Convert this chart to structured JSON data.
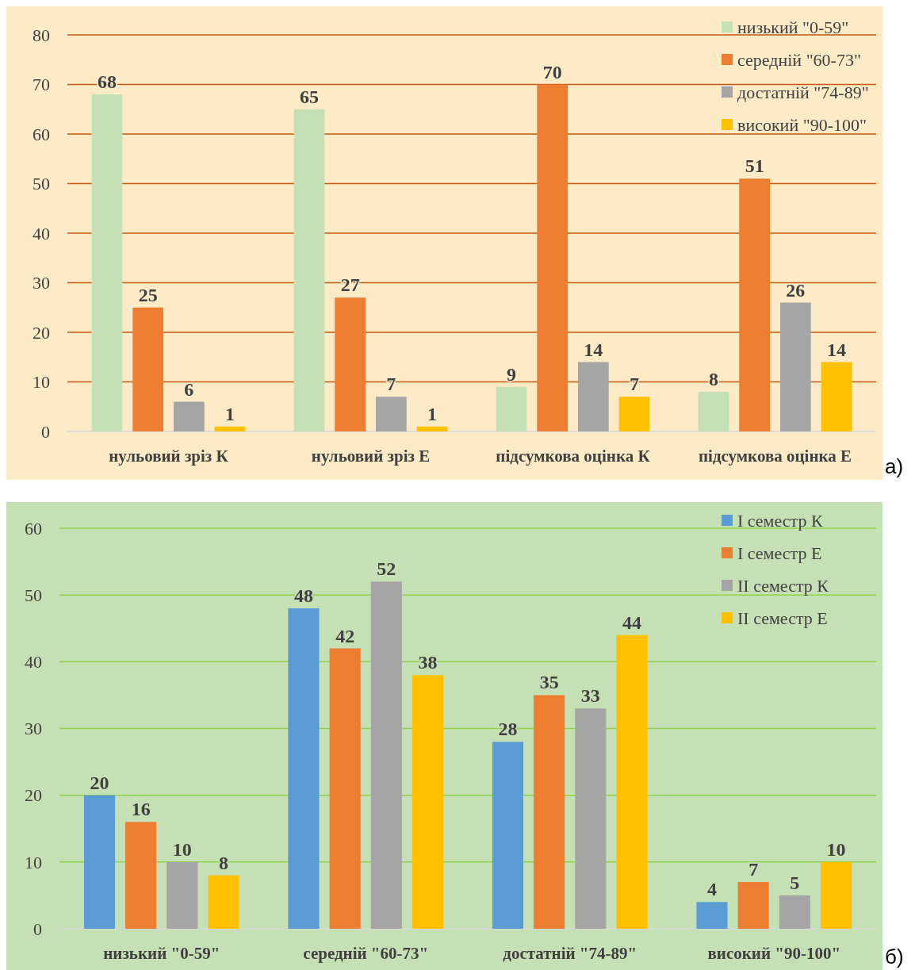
{
  "chart_data": [
    {
      "type": "bar",
      "categories": [
        "нульовий зріз К",
        "нульовий зріз Е",
        "підсумкова оцінка К",
        "підсумкова оцінка Е"
      ],
      "series": [
        {
          "name": "низький \"0-59\"",
          "color": "#c5e0b4",
          "values": [
            68,
            65,
            9,
            8
          ]
        },
        {
          "name": "середній \"60-73\"",
          "color": "#ed7d31",
          "values": [
            25,
            27,
            70,
            51
          ]
        },
        {
          "name": "достатній \"74-89\"",
          "color": "#a5a5a5",
          "values": [
            6,
            7,
            14,
            26
          ]
        },
        {
          "name": "високий \"90-100\"",
          "color": "#ffc000",
          "values": [
            1,
            1,
            7,
            14
          ]
        }
      ],
      "ylim": [
        0,
        80
      ],
      "yticks": [
        0,
        10,
        20,
        30,
        40,
        50,
        60,
        70,
        80
      ],
      "grid": "y",
      "legend": "top right",
      "data_labels": true,
      "annotations": [
        "а)"
      ]
    },
    {
      "type": "bar",
      "categories": [
        "низький \"0-59\"",
        "середній \"60-73\"",
        "достатній \"74-89\"",
        "високий \"90-100\""
      ],
      "series": [
        {
          "name": "I семестр К",
          "color": "#5b9bd5",
          "values": [
            20,
            48,
            28,
            4
          ]
        },
        {
          "name": "I семестр Е",
          "color": "#ed7d31",
          "values": [
            16,
            42,
            35,
            7
          ]
        },
        {
          "name": "II семестр К",
          "color": "#a5a5a5",
          "values": [
            10,
            52,
            33,
            5
          ]
        },
        {
          "name": "II семестр Е",
          "color": "#ffc000",
          "values": [
            8,
            38,
            44,
            10
          ]
        }
      ],
      "ylim": [
        0,
        60
      ],
      "yticks": [
        0,
        10,
        20,
        30,
        40,
        50,
        60
      ],
      "grid": "y",
      "legend": "top right",
      "data_labels": true,
      "annotations": [
        "б)"
      ]
    }
  ]
}
